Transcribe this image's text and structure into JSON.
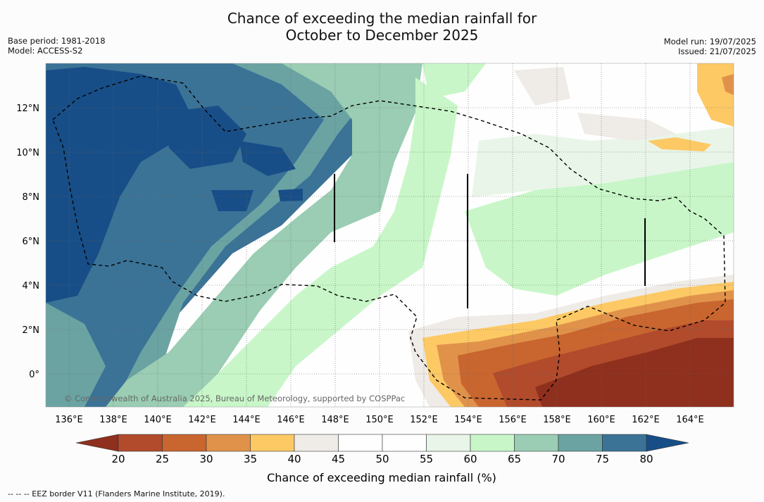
{
  "title": {
    "line1": "Chance of exceeding the median rainfall for",
    "line2": "October to December 2025"
  },
  "meta_left": {
    "base_period": "Base period: 1981-2018",
    "model": "Model: ACCESS-S2"
  },
  "meta_right": {
    "model_run": "Model run: 19/07/2025",
    "issued": "Issued: 21/07/2025"
  },
  "map": {
    "x_ticks": [
      "136°E",
      "138°E",
      "140°E",
      "142°E",
      "144°E",
      "146°E",
      "148°E",
      "150°E",
      "152°E",
      "154°E",
      "156°E",
      "158°E",
      "160°E",
      "162°E",
      "164°E"
    ],
    "y_ticks": [
      "12°N",
      "10°N",
      "8°N",
      "6°N",
      "4°N",
      "2°N",
      "0°"
    ],
    "copyright": "© Commonwealth of Australia 2025, Bureau of Meteorology, supported by COSPPac"
  },
  "colorbar": {
    "label": "Chance of exceeding median rainfall (%)",
    "ticks": [
      "20",
      "25",
      "30",
      "35",
      "40",
      "45",
      "50",
      "55",
      "60",
      "65",
      "70",
      "75",
      "80"
    ],
    "colors": [
      "#8f2f1d",
      "#b14b2c",
      "#c9652f",
      "#e0924a",
      "#fdc965",
      "#efebe6",
      "#fefefe",
      "#fefefe",
      "#e9f5e8",
      "#c8f6c8",
      "#9acdb3",
      "#6ba3a3",
      "#3b7397",
      "#184e87"
    ]
  },
  "footer": "--  --  -- EEZ border V11 (Flanders Marine Institute, 2019)."
}
